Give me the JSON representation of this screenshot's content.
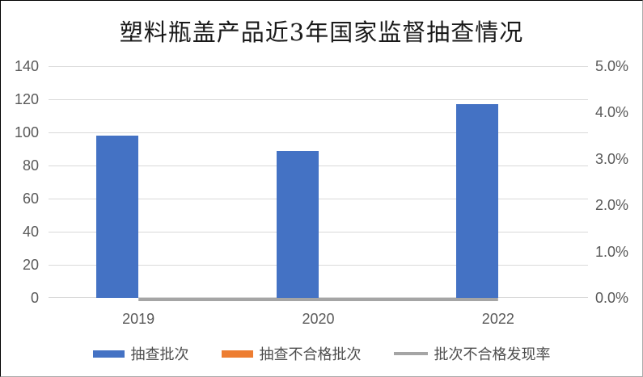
{
  "chart_data": {
    "type": "bar",
    "title": "塑料瓶盖产品近3年国家监督抽查情况",
    "categories": [
      "2019",
      "2020",
      "2022"
    ],
    "series": [
      {
        "name": "抽查批次",
        "chart_type": "bar",
        "axis": "primary",
        "color": "#4472C4",
        "values": [
          98,
          89,
          117
        ]
      },
      {
        "name": "抽查不合格批次",
        "chart_type": "bar",
        "axis": "primary",
        "color": "#ED7D31",
        "values": [
          0,
          0,
          0
        ]
      },
      {
        "name": "批次不合格发现率",
        "chart_type": "line",
        "axis": "secondary",
        "color": "#A5A5A5",
        "values_percent": [
          0.0,
          0.0,
          0.0
        ]
      }
    ],
    "primary_axis": {
      "min": 0,
      "max": 140,
      "step": 20,
      "tick_labels": [
        "140",
        "120",
        "100",
        "80",
        "60",
        "40",
        "20",
        "0"
      ]
    },
    "secondary_axis": {
      "min": 0,
      "max": 5,
      "tick_labels": [
        "5.0%",
        "4.0%",
        "3.0%",
        "2.0%",
        "1.0%",
        "0.0%"
      ]
    },
    "grid": true,
    "legend_position": "bottom",
    "colors": {
      "gridline": "#D9D9D9",
      "axis_label_text": "#595959",
      "category_label_text": "#595959",
      "legend_text": "#4d4d4d",
      "title_text": "#1a1a1a"
    }
  }
}
